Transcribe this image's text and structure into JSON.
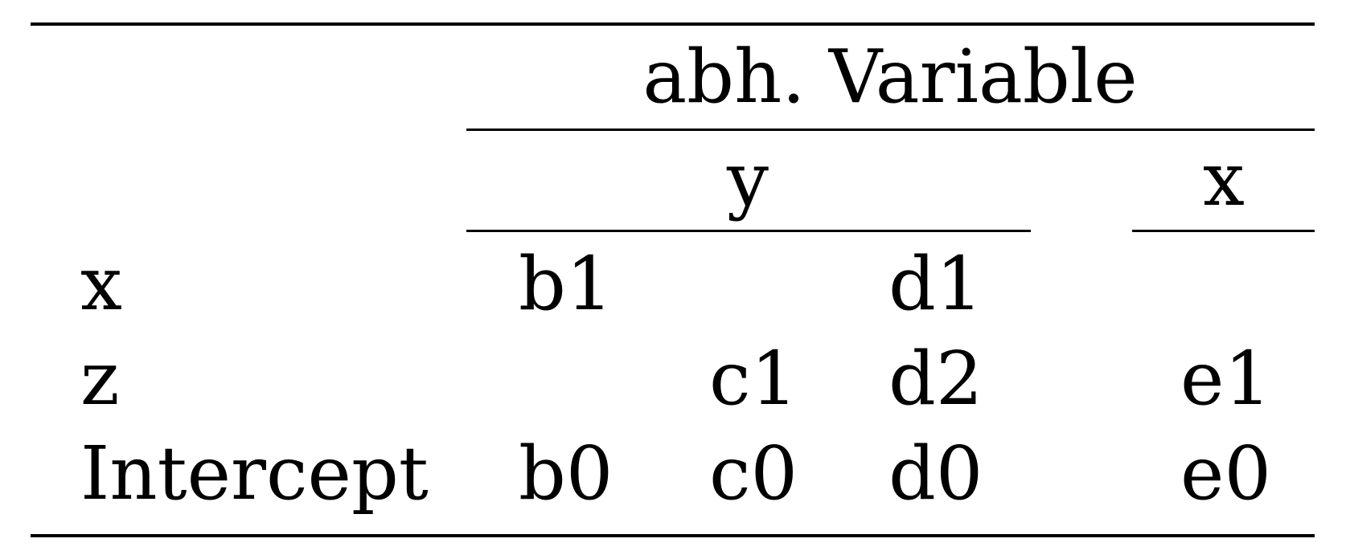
{
  "table": {
    "header": {
      "group_label": "abh. Variable",
      "subgroups": [
        "y",
        "x"
      ]
    },
    "rows": [
      {
        "label": "x",
        "cells": [
          "b1",
          "",
          "d1",
          ""
        ]
      },
      {
        "label": "z",
        "cells": [
          "",
          "c1",
          "d2",
          "e1"
        ]
      },
      {
        "label": "Intercept",
        "cells": [
          "b0",
          "c0",
          "d0",
          "e0"
        ]
      }
    ]
  }
}
